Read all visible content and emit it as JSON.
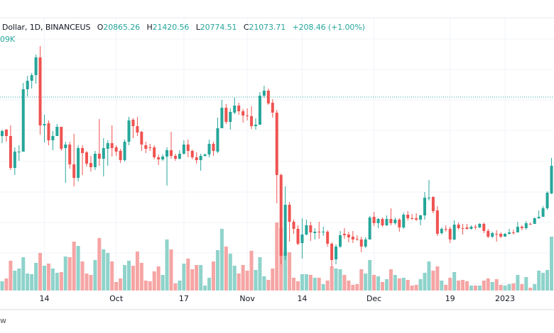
{
  "legend": {
    "symbol": "Dollar, 1D, BINANCEUS",
    "open_label": "O",
    "open": "20865.26",
    "high_label": "H",
    "high": "21420.56",
    "low_label": "L",
    "low": "20774.51",
    "close_label": "C",
    "close": "21073.71",
    "change": "+208.46 (+1.00%)",
    "volume": "09K"
  },
  "footer_text": "w",
  "colors": {
    "up": "#26a69a",
    "down": "#ef5350",
    "up_volume": "#8fd3cb",
    "down_volume": "#f5a5a4",
    "grid": "#f0f3fa",
    "dotted_line": "#26a69a"
  },
  "chart_data": {
    "type": "candlestick",
    "interval": "1D",
    "exchange": "BINANCEUS",
    "dotted_line_price": 25950,
    "x_ticks": [
      {
        "label": "14",
        "index": 10
      },
      {
        "label": "Oct",
        "index": 27
      },
      {
        "label": "17",
        "index": 43
      },
      {
        "label": "Nov",
        "index": 58
      },
      {
        "label": "14",
        "index": 71
      },
      {
        "label": "Dec",
        "index": 88
      },
      {
        "label": "19",
        "index": 106
      },
      {
        "label": "2023",
        "index": 119
      }
    ],
    "ohlc_fields": [
      "open",
      "high",
      "low",
      "close"
    ],
    "candles": [
      [
        23200,
        23650,
        22700,
        23550
      ],
      [
        23650,
        23700,
        22800,
        23200
      ],
      [
        23200,
        23950,
        20800,
        20950
      ],
      [
        20950,
        22400,
        20450,
        22100
      ],
      [
        22050,
        22550,
        21450,
        22100
      ],
      [
        22100,
        26950,
        22100,
        26500
      ],
      [
        26500,
        27450,
        26000,
        27100
      ],
      [
        27100,
        27650,
        26550,
        27500
      ],
      [
        27500,
        28950,
        26900,
        28750
      ],
      [
        28750,
        29550,
        23300,
        23950
      ],
      [
        23950,
        24700,
        22750,
        24050
      ],
      [
        24100,
        24300,
        22550,
        22900
      ],
      [
        22900,
        23550,
        22200,
        23200
      ],
      [
        23200,
        24050,
        23200,
        23850
      ],
      [
        23850,
        23850,
        22150,
        22300
      ],
      [
        22350,
        22800,
        19900,
        22600
      ],
      [
        22600,
        22800,
        20900,
        21200
      ],
      [
        21200,
        23350,
        19650,
        20250
      ],
      [
        20250,
        22550,
        20000,
        22350
      ],
      [
        22350,
        22550,
        20450,
        22000
      ],
      [
        22050,
        22150,
        21050,
        21250
      ],
      [
        21300,
        21800,
        20700,
        21000
      ],
      [
        21000,
        22150,
        20800,
        21950
      ],
      [
        21950,
        24400,
        21100,
        21600
      ],
      [
        21600,
        23050,
        20350,
        22350
      ],
      [
        22300,
        22900,
        21100,
        22700
      ],
      [
        22700,
        23950,
        21750,
        22350
      ],
      [
        22400,
        22550,
        21800,
        22100
      ],
      [
        22150,
        22300,
        21300,
        21500
      ],
      [
        21500,
        22950,
        21400,
        22800
      ],
      [
        22800,
        24550,
        22550,
        24300
      ],
      [
        24350,
        24450,
        23050,
        23900
      ],
      [
        23900,
        24550,
        23200,
        23450
      ],
      [
        23500,
        23550,
        22150,
        22600
      ],
      [
        22550,
        22800,
        22000,
        22300
      ],
      [
        22400,
        22650,
        22150,
        22350
      ],
      [
        22400,
        22550,
        21550,
        21700
      ],
      [
        21700,
        21900,
        21150,
        21550
      ],
      [
        21550,
        21900,
        21450,
        21750
      ],
      [
        21750,
        22400,
        19700,
        22200
      ],
      [
        22200,
        23500,
        21600,
        21800
      ],
      [
        21800,
        21950,
        21450,
        21600
      ],
      [
        21600,
        22200,
        21550,
        21950
      ],
      [
        21950,
        22900,
        21900,
        22600
      ],
      [
        22600,
        22950,
        21700,
        22150
      ],
      [
        22150,
        22250,
        21550,
        21700
      ],
      [
        21700,
        22050,
        21250,
        21500
      ],
      [
        21500,
        21950,
        20750,
        21800
      ],
      [
        21800,
        21950,
        21750,
        21900
      ],
      [
        21900,
        22950,
        21700,
        22650
      ],
      [
        22650,
        22800,
        21800,
        22150
      ],
      [
        22100,
        24500,
        22000,
        23750
      ],
      [
        23750,
        25750,
        23750,
        25200
      ],
      [
        25200,
        25450,
        24050,
        24200
      ],
      [
        24200,
        25150,
        23650,
        24900
      ],
      [
        24850,
        25900,
        24750,
        25350
      ],
      [
        25350,
        25550,
        24700,
        24950
      ],
      [
        24950,
        25100,
        24150,
        24650
      ],
      [
        24650,
        25150,
        24300,
        24600
      ],
      [
        24600,
        25300,
        23700,
        23900
      ],
      [
        23900,
        24450,
        23650,
        24000
      ],
      [
        24000,
        26300,
        24000,
        26050
      ],
      [
        26050,
        26750,
        25900,
        26400
      ],
      [
        26400,
        26550,
        25400,
        25500
      ],
      [
        25550,
        25800,
        24500,
        24850
      ],
      [
        24850,
        25050,
        18450,
        20450
      ],
      [
        20450,
        20550,
        14150,
        14750
      ],
      [
        14750,
        19650,
        14450,
        18350
      ],
      [
        18350,
        18550,
        15750,
        17150
      ],
      [
        17150,
        17300,
        16300,
        16650
      ],
      [
        16650,
        16900,
        15500,
        15600
      ],
      [
        15650,
        17400,
        14550,
        16250
      ],
      [
        16250,
        17300,
        16200,
        16900
      ],
      [
        16900,
        17150,
        15800,
        16400
      ],
      [
        16350,
        16700,
        15900,
        16450
      ],
      [
        16450,
        17150,
        15950,
        16400
      ],
      [
        16400,
        16800,
        16150,
        16450
      ],
      [
        16450,
        16550,
        15400,
        15600
      ],
      [
        15600,
        15700,
        13950,
        14450
      ],
      [
        14500,
        15550,
        14150,
        15400
      ],
      [
        15400,
        16500,
        15300,
        16200
      ],
      [
        16300,
        16700,
        15950,
        16200
      ],
      [
        16250,
        16450,
        15700,
        16050
      ],
      [
        16100,
        16500,
        15650,
        15900
      ],
      [
        15950,
        16200,
        15800,
        15900
      ],
      [
        15900,
        16100,
        15000,
        15400
      ],
      [
        15400,
        16050,
        15300,
        15900
      ],
      [
        15900,
        17550,
        15900,
        17450
      ],
      [
        17500,
        17850,
        16850,
        17050
      ],
      [
        17050,
        17400,
        16700,
        17350
      ],
      [
        17350,
        17450,
        16800,
        16900
      ],
      [
        16900,
        17600,
        16850,
        17350
      ],
      [
        17350,
        18100,
        16900,
        17050
      ],
      [
        17050,
        17450,
        16950,
        17300
      ],
      [
        17300,
        17400,
        16450,
        16750
      ],
      [
        16750,
        17800,
        16650,
        17650
      ],
      [
        17650,
        17900,
        17250,
        17400
      ],
      [
        17400,
        17700,
        17300,
        17350
      ],
      [
        17400,
        17750,
        17200,
        17300
      ],
      [
        17300,
        17650,
        16900,
        17600
      ],
      [
        17600,
        19250,
        17300,
        18850
      ],
      [
        18800,
        20100,
        18650,
        18850
      ],
      [
        18900,
        18950,
        17750,
        17900
      ],
      [
        17950,
        18250,
        16150,
        16300
      ],
      [
        16350,
        16750,
        16250,
        16650
      ],
      [
        16650,
        16900,
        16450,
        16600
      ],
      [
        16650,
        16800,
        15650,
        15900
      ],
      [
        15900,
        17250,
        15850,
        16950
      ],
      [
        16950,
        17100,
        16600,
        16700
      ],
      [
        16700,
        17000,
        16250,
        16690
      ],
      [
        16750,
        17000,
        16600,
        16650
      ],
      [
        16650,
        16900,
        16600,
        16800
      ],
      [
        16800,
        16950,
        16600,
        16750
      ],
      [
        16750,
        17050,
        16700,
        17000
      ],
      [
        17000,
        17100,
        16350,
        16500
      ],
      [
        16500,
        16650,
        16000,
        16100
      ],
      [
        16100,
        16450,
        16000,
        16350
      ],
      [
        16300,
        16550,
        15750,
        16250
      ],
      [
        16300,
        16400,
        16000,
        16100
      ],
      [
        16100,
        16350,
        16100,
        16300
      ],
      [
        16300,
        16650,
        16250,
        16400
      ],
      [
        16400,
        16600,
        16250,
        16380
      ],
      [
        16400,
        17150,
        16400,
        16800
      ],
      [
        16800,
        16900,
        16550,
        16700
      ],
      [
        16700,
        17200,
        16600,
        17050
      ],
      [
        17000,
        17100,
        16980,
        16980
      ],
      [
        17000,
        17450,
        17000,
        17400
      ],
      [
        17400,
        17950,
        17350,
        17500
      ],
      [
        17500,
        18250,
        17500,
        18100
      ],
      [
        18100,
        19300,
        18000,
        19200
      ],
      [
        19150,
        21650,
        19100,
        21100
      ]
    ],
    "volumes": [
      13,
      17,
      42,
      28,
      31,
      47,
      24,
      23,
      39,
      53,
      35,
      38,
      31,
      25,
      26,
      48,
      47,
      69,
      63,
      41,
      24,
      22,
      43,
      74,
      58,
      53,
      41,
      12,
      17,
      36,
      42,
      35,
      55,
      39,
      14,
      13,
      27,
      34,
      22,
      72,
      58,
      10,
      14,
      38,
      45,
      30,
      36,
      36,
      7,
      18,
      41,
      57,
      87,
      62,
      52,
      35,
      24,
      36,
      28,
      56,
      29,
      47,
      20,
      15,
      31,
      96,
      88,
      55,
      54,
      18,
      13,
      23,
      23,
      22,
      18,
      18,
      9,
      14,
      34,
      31,
      30,
      22,
      14,
      8,
      9,
      30,
      24,
      43,
      22,
      20,
      12,
      16,
      30,
      22,
      17,
      18,
      15,
      7,
      8,
      16,
      25,
      41,
      28,
      34,
      14,
      8,
      18,
      26,
      14,
      15,
      13,
      7,
      7,
      7,
      14,
      17,
      12,
      16,
      8,
      7,
      9,
      10,
      22,
      9,
      19,
      4,
      9,
      28,
      25,
      29,
      76
    ]
  }
}
